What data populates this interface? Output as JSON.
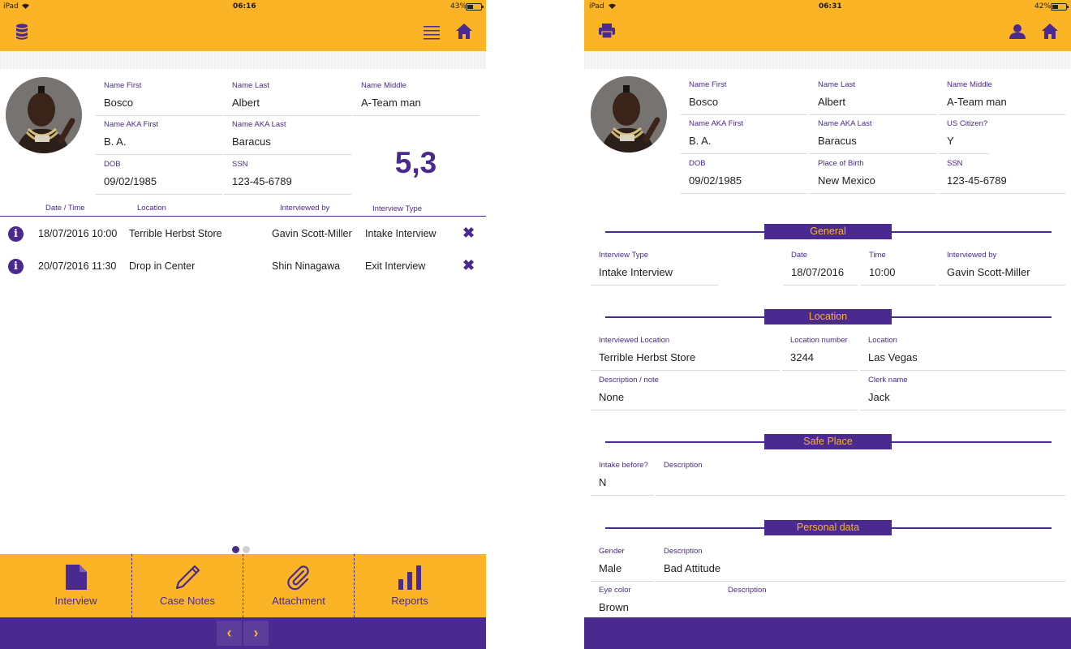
{
  "left": {
    "status": {
      "carrier": "iPad",
      "time": "06:16",
      "battery": "43%",
      "battery_level": 0.43
    },
    "person": {
      "first": {
        "label": "Name First",
        "value": "Bosco"
      },
      "last": {
        "label": "Name Last",
        "value": "Albert"
      },
      "middle": {
        "label": "Name Middle",
        "value": "A-Team man"
      },
      "aka_first": {
        "label": "Name AKA First",
        "value": "B. A."
      },
      "aka_last": {
        "label": "Name AKA Last",
        "value": "Baracus"
      },
      "dob": {
        "label": "DOB",
        "value": "09/02/1985"
      },
      "ssn": {
        "label": "SSN",
        "value": "123-45-6789"
      }
    },
    "score": "5,3",
    "table": {
      "headers": [
        "Date / Time",
        "Location",
        "Interviewed by",
        "Interview Type"
      ],
      "rows": [
        {
          "datetime": "18/07/2016 10:00",
          "location": "Terrible Herbst Store",
          "by": "Gavin Scott-Miller",
          "type": "Intake Interview"
        },
        {
          "datetime": "20/07/2016 11:30",
          "location": "Drop in Center",
          "by": "Shin Ninagawa",
          "type": "Exit Interview"
        }
      ]
    },
    "tabs": [
      "Interview",
      "Case Notes",
      "Attachment",
      "Reports"
    ],
    "nav": {
      "prev": "‹",
      "next": "›"
    }
  },
  "right": {
    "status": {
      "carrier": "iPad",
      "time": "06:31",
      "battery": "42%",
      "battery_level": 0.42
    },
    "person": {
      "first": {
        "label": "Name First",
        "value": "Bosco"
      },
      "last": {
        "label": "Name Last",
        "value": "Albert"
      },
      "middle": {
        "label": "Name Middle",
        "value": "A-Team man"
      },
      "aka_first": {
        "label": "Name AKA First",
        "value": "B. A."
      },
      "aka_last": {
        "label": "Name AKA Last",
        "value": "Baracus"
      },
      "citizen": {
        "label": "US Citizen?",
        "value": "Y"
      },
      "dob": {
        "label": "DOB",
        "value": "09/02/1985"
      },
      "pob": {
        "label": "Place of Birth",
        "value": "New Mexico"
      },
      "ssn": {
        "label": "SSN",
        "value": "123-45-6789"
      }
    },
    "general": {
      "title": "General",
      "interview_type": {
        "label": "Interview Type",
        "value": "Intake Interview"
      },
      "date": {
        "label": "Date",
        "value": "18/07/2016"
      },
      "time": {
        "label": "Time",
        "value": "10:00"
      },
      "interviewed_by": {
        "label": "Interviewed by",
        "value": "Gavin Scott-Miller"
      }
    },
    "location": {
      "title": "Location",
      "interviewed_location": {
        "label": "Interviewed Location",
        "value": "Terrible Herbst Store"
      },
      "location_number": {
        "label": "Location number",
        "value": "3244"
      },
      "location": {
        "label": "Location",
        "value": "Las Vegas"
      },
      "description": {
        "label": "Description / note",
        "value": "None"
      },
      "clerk": {
        "label": "Clerk name",
        "value": "Jack"
      }
    },
    "safe_place": {
      "title": "Safe Place",
      "intake_before": {
        "label": "Intake before?",
        "value": "N"
      },
      "description": {
        "label": "Description",
        "value": ""
      }
    },
    "personal": {
      "title": "Personal data",
      "gender": {
        "label": "Gender",
        "value": "Male"
      },
      "gender_desc": {
        "label": "Description",
        "value": "Bad Attitude"
      },
      "eye": {
        "label": "Eye color",
        "value": "Brown"
      },
      "eye_desc": {
        "label": "Description",
        "value": ""
      }
    }
  },
  "colors": {
    "accent": "#fbb426",
    "brand": "#4a2a8e"
  }
}
